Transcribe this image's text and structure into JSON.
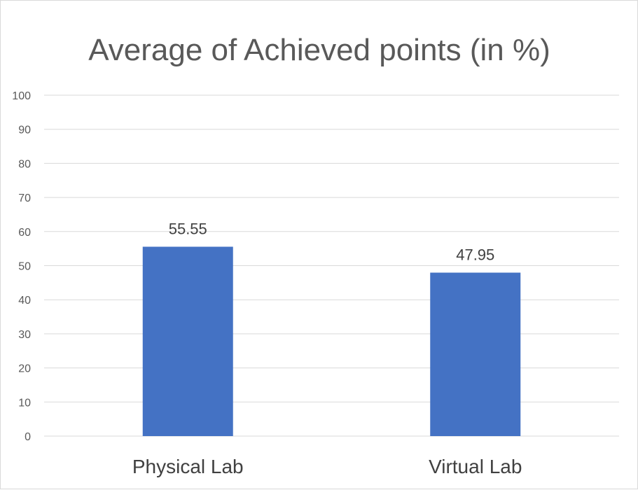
{
  "chart_data": {
    "type": "bar",
    "title": "Average of Achieved points (in %)",
    "categories": [
      "Physical Lab",
      "Virtual Lab"
    ],
    "values": [
      55.55,
      47.95
    ],
    "data_labels": [
      "55.55",
      "47.95"
    ],
    "ylim": [
      0,
      100
    ],
    "yticks": [
      "0",
      "10",
      "20",
      "30",
      "40",
      "50",
      "60",
      "70",
      "80",
      "90",
      "100"
    ],
    "grid": true,
    "legend": "none",
    "colors": {
      "bar": "#4472C4",
      "grid": "#d9d9d9",
      "text": "#595959"
    }
  }
}
